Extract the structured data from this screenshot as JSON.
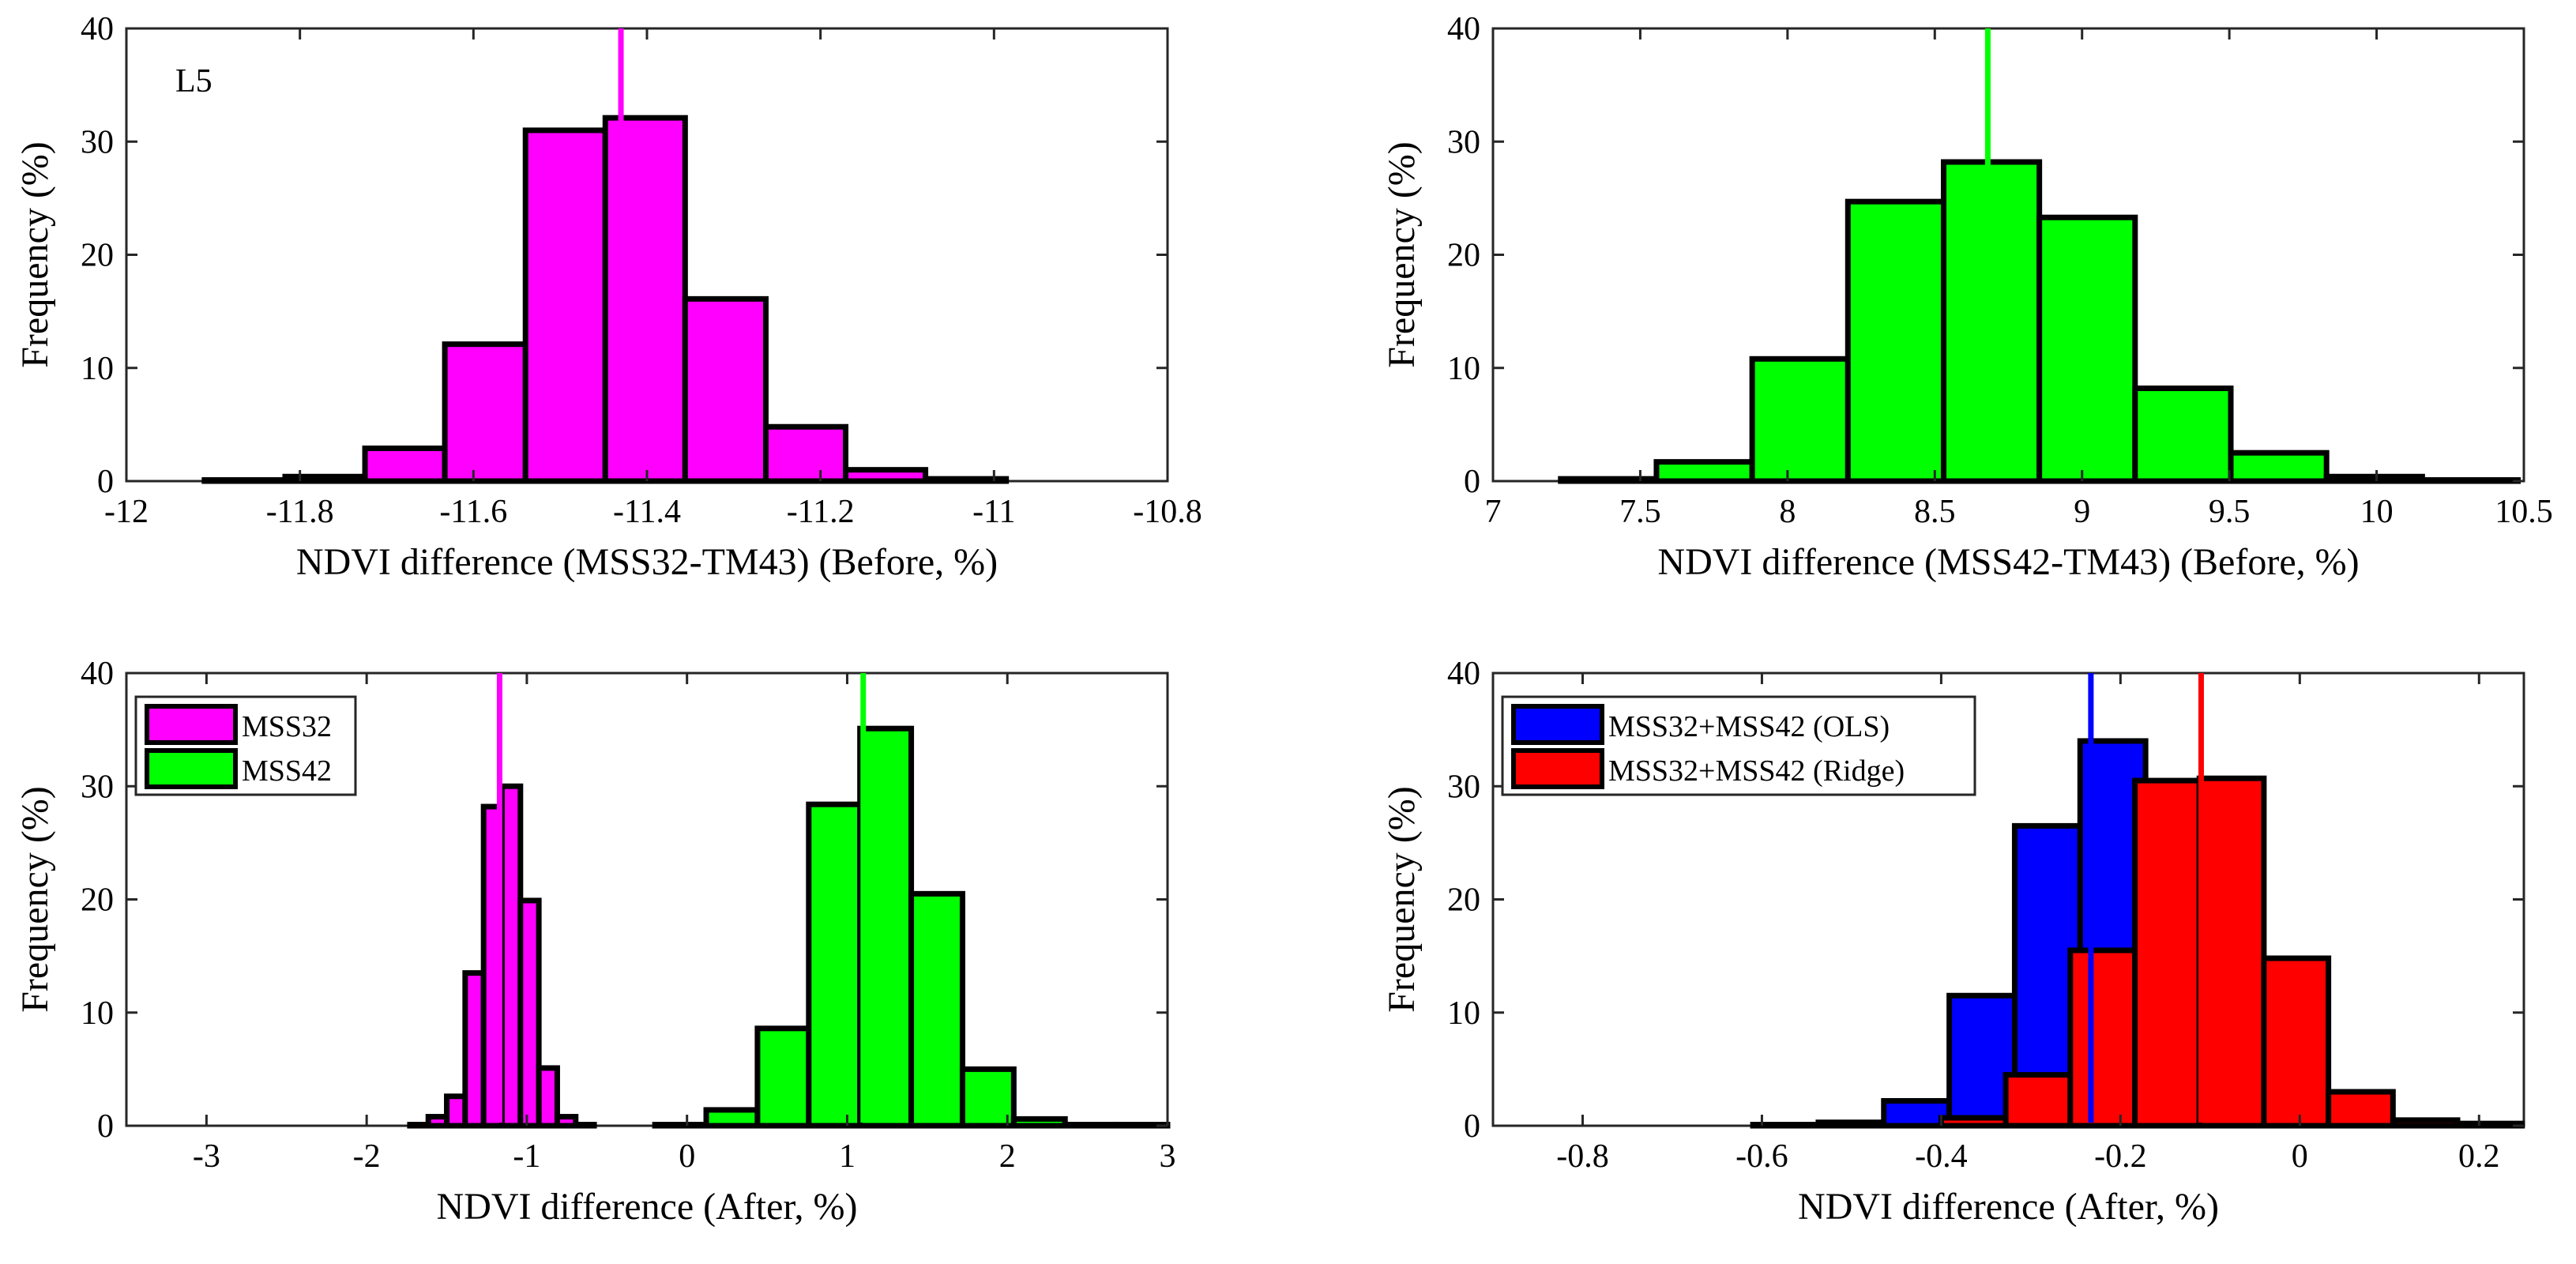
{
  "chart_data": [
    {
      "type": "bar",
      "panel": "top-left",
      "panel_label": "L5",
      "xlabel": "NDVI difference (MSS32-TM43) (Before, %)",
      "ylabel": "Frequency (%)",
      "xlim": [
        -12,
        -10.8
      ],
      "ylim": [
        0,
        40
      ],
      "xticks": [
        "-12",
        "-11.8",
        "-11.6",
        "-11.4",
        "-11.2",
        "-11",
        "-10.8"
      ],
      "yticks": [
        "0",
        "10",
        "20",
        "30",
        "40"
      ],
      "xtick_values": [
        -12,
        -11.8,
        -11.6,
        -11.4,
        -11.2,
        -11,
        -10.8
      ],
      "ytick_values": [
        0,
        10,
        20,
        30,
        40
      ],
      "mean_line": -11.43,
      "series": [
        {
          "name": "MSS32",
          "color": "#ff00ff",
          "edges": [
            -11.91,
            -11.817,
            -11.725,
            -11.633,
            -11.54,
            -11.448,
            -11.356,
            -11.263,
            -11.171,
            -11.079,
            -10.986
          ],
          "values": [
            0.1,
            0.4,
            2.9,
            12.1,
            31.0,
            32.1,
            16.1,
            4.8,
            1.0,
            0.2
          ]
        }
      ]
    },
    {
      "type": "bar",
      "panel": "top-right",
      "xlabel": "NDVI difference (MSS42-TM43) (Before, %)",
      "ylabel": "Frequency (%)",
      "xlim": [
        7,
        10.5
      ],
      "ylim": [
        0,
        40
      ],
      "xticks": [
        "7",
        "7.5",
        "8",
        "8.5",
        "9",
        "9.5",
        "10",
        "10.5"
      ],
      "yticks": [
        "0",
        "10",
        "20",
        "30",
        "40"
      ],
      "xtick_values": [
        7,
        7.5,
        8,
        8.5,
        9,
        9.5,
        10,
        10.5
      ],
      "ytick_values": [
        0,
        10,
        20,
        30,
        40
      ],
      "mean_line": 8.68,
      "series": [
        {
          "name": "MSS42",
          "color": "#00ff00",
          "edges": [
            7.23,
            7.555,
            7.88,
            8.205,
            8.53,
            8.855,
            9.18,
            9.505,
            9.83,
            10.155,
            10.48
          ],
          "values": [
            0.2,
            1.7,
            10.8,
            24.7,
            28.2,
            23.3,
            8.2,
            2.5,
            0.4,
            0.1
          ]
        }
      ]
    },
    {
      "type": "bar",
      "panel": "bottom-left",
      "xlabel": "NDVI difference (After, %)",
      "ylabel": "Frequency (%)",
      "xlim": [
        -3.5,
        3
      ],
      "ylim": [
        0,
        40
      ],
      "xticks": [
        "-3",
        "-2",
        "-1",
        "0",
        "1",
        "2",
        "3"
      ],
      "yticks": [
        "0",
        "10",
        "20",
        "30",
        "40"
      ],
      "xtick_values": [
        -3,
        -2,
        -1,
        0,
        1,
        2,
        3
      ],
      "ytick_values": [
        0,
        10,
        20,
        30,
        40
      ],
      "legend": {
        "location": "top-left",
        "entries": [
          "MSS32",
          "MSS42"
        ]
      },
      "series": [
        {
          "name": "MSS32",
          "color": "#ff00ff",
          "mean_line": -1.17,
          "edges": [
            -1.73,
            -1.615,
            -1.5,
            -1.385,
            -1.27,
            -1.155,
            -1.04,
            -0.925,
            -0.81,
            -0.695,
            -0.58
          ],
          "values": [
            0.1,
            0.8,
            2.6,
            13.5,
            28.2,
            30.0,
            19.9,
            5.1,
            0.8,
            0.1
          ]
        },
        {
          "name": "MSS42",
          "color": "#00ff00",
          "mean_line": 1.1,
          "edges": [
            -0.2,
            0.12,
            0.44,
            0.76,
            1.08,
            1.4,
            1.72,
            2.04,
            2.36,
            2.68,
            3.0
          ],
          "values": [
            0.1,
            1.4,
            8.6,
            28.4,
            35.1,
            20.5,
            5.0,
            0.6,
            0.1,
            0.1
          ]
        }
      ]
    },
    {
      "type": "bar",
      "panel": "bottom-right",
      "xlabel": "NDVI difference (After, %)",
      "ylabel": "Frequency (%)",
      "xlim": [
        -0.9,
        0.25
      ],
      "ylim": [
        0,
        40
      ],
      "xticks": [
        "-0.8",
        "-0.6",
        "-0.4",
        "-0.2",
        "0",
        "0.2"
      ],
      "yticks": [
        "0",
        "10",
        "20",
        "30",
        "40"
      ],
      "xtick_values": [
        -0.8,
        -0.6,
        -0.4,
        -0.2,
        0,
        0.2
      ],
      "ytick_values": [
        0,
        10,
        20,
        30,
        40
      ],
      "legend": {
        "location": "top-left",
        "entries": [
          "MSS32+MSS42 (OLS)",
          "MSS32+MSS42 (Ridge)"
        ]
      },
      "series": [
        {
          "name": "MSS32+MSS42 (OLS)",
          "color": "#0000ff",
          "mean_line": -0.233,
          "edges": [
            -0.61,
            -0.537,
            -0.464,
            -0.391,
            -0.318,
            -0.245,
            -0.172
          ],
          "values": [
            0.1,
            0.3,
            2.2,
            11.5,
            26.5,
            34.0
          ]
        },
        {
          "name": "MSS32+MSS42 (Ridge)",
          "color": "#ff0000",
          "mean_line": -0.11,
          "edges": [
            -0.4,
            -0.328,
            -0.256,
            -0.184,
            -0.112,
            -0.04,
            0.032,
            0.104,
            0.176,
            0.248
          ],
          "values": [
            0.7,
            4.5,
            15.5,
            30.5,
            30.7,
            14.8,
            3.0,
            0.5,
            0.2
          ]
        }
      ]
    }
  ]
}
